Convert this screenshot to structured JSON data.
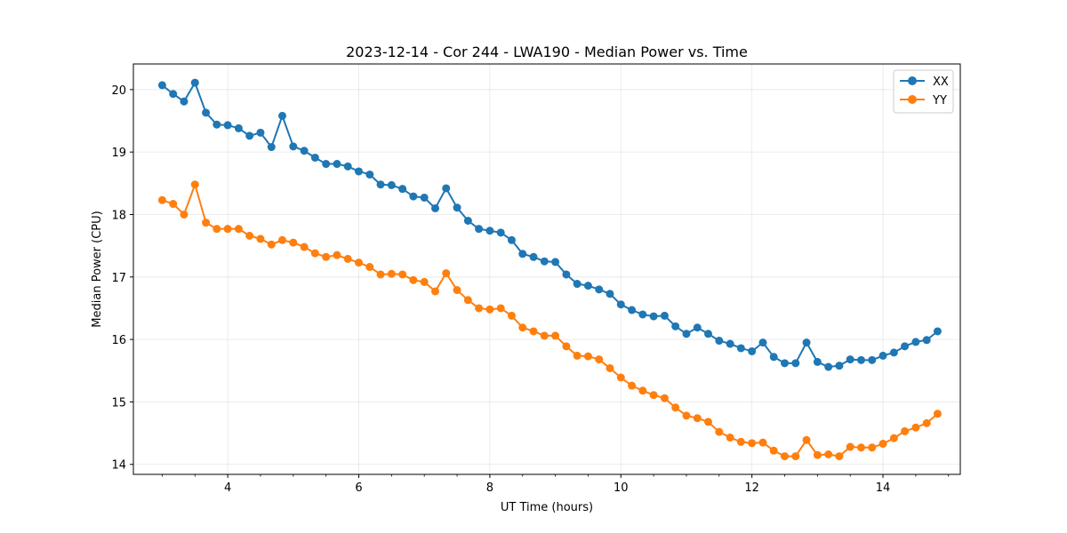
{
  "chart_data": {
    "type": "line",
    "title": "2023-12-14 - Cor 244 - LWA190 - Median Power vs. Time",
    "xlabel": "UT Time (hours)",
    "ylabel": "Median Power (CPU)",
    "xlim": [
      2.56,
      15.18
    ],
    "ylim": [
      13.84,
      20.41
    ],
    "xticks": [
      4,
      6,
      8,
      10,
      12,
      14
    ],
    "xticks_minor": [
      3,
      3.5,
      4.5,
      5,
      5.5,
      6.5,
      7,
      7.5,
      8.5,
      9,
      9.5,
      10.5,
      11,
      11.5,
      12.5,
      13,
      13.5,
      14.5,
      15
    ],
    "yticks": [
      14,
      15,
      16,
      17,
      18,
      19,
      20
    ],
    "grid": true,
    "legend_position": "top-right",
    "x": [
      3.0,
      3.167,
      3.333,
      3.5,
      3.667,
      3.833,
      4.0,
      4.167,
      4.333,
      4.5,
      4.667,
      4.833,
      5.0,
      5.167,
      5.333,
      5.5,
      5.667,
      5.833,
      6.0,
      6.167,
      6.333,
      6.5,
      6.667,
      6.833,
      7.0,
      7.167,
      7.333,
      7.5,
      7.667,
      7.833,
      8.0,
      8.167,
      8.333,
      8.5,
      8.667,
      8.833,
      9.0,
      9.167,
      9.333,
      9.5,
      9.667,
      9.833,
      10.0,
      10.167,
      10.333,
      10.5,
      10.667,
      10.833,
      11.0,
      11.167,
      11.333,
      11.5,
      11.667,
      11.833,
      12.0,
      12.167,
      12.333,
      12.5,
      12.667,
      12.833,
      13.0,
      13.167,
      13.333,
      13.5,
      13.667,
      13.833,
      14.0,
      14.167,
      14.333,
      14.5,
      14.667,
      14.833
    ],
    "series": [
      {
        "name": "XX",
        "color": "#1f77b4",
        "values": [
          20.07,
          19.93,
          19.81,
          20.11,
          19.63,
          19.44,
          19.43,
          19.38,
          19.26,
          19.31,
          19.08,
          19.58,
          19.09,
          19.02,
          18.91,
          18.81,
          18.81,
          18.77,
          18.69,
          18.64,
          18.48,
          18.47,
          18.41,
          18.29,
          18.27,
          18.1,
          18.42,
          18.11,
          17.9,
          17.77,
          17.74,
          17.71,
          17.59,
          17.37,
          17.32,
          17.25,
          17.24,
          17.04,
          16.89,
          16.86,
          16.8,
          16.73,
          16.56,
          16.47,
          16.4,
          16.37,
          16.38,
          16.21,
          16.09,
          16.19,
          16.09,
          15.98,
          15.93,
          15.86,
          15.81,
          15.95,
          15.72,
          15.62,
          15.62,
          15.95,
          15.64,
          15.56,
          15.58,
          15.68,
          15.67,
          15.67,
          15.74,
          15.79,
          15.89,
          15.96,
          15.99,
          16.13
        ]
      },
      {
        "name": "YY",
        "color": "#ff7f0e",
        "values": [
          18.23,
          18.17,
          18.0,
          18.48,
          17.87,
          17.77,
          17.77,
          17.77,
          17.66,
          17.61,
          17.52,
          17.59,
          17.55,
          17.48,
          17.38,
          17.32,
          17.35,
          17.29,
          17.23,
          17.16,
          17.04,
          17.05,
          17.04,
          16.95,
          16.92,
          16.77,
          17.06,
          16.79,
          16.63,
          16.5,
          16.48,
          16.5,
          16.38,
          16.19,
          16.13,
          16.06,
          16.06,
          15.89,
          15.74,
          15.73,
          15.68,
          15.54,
          15.39,
          15.26,
          15.18,
          15.11,
          15.06,
          14.91,
          14.78,
          14.74,
          14.68,
          14.52,
          14.43,
          14.36,
          14.34,
          14.35,
          14.22,
          14.13,
          14.13,
          14.39,
          14.15,
          14.16,
          14.13,
          14.28,
          14.27,
          14.27,
          14.33,
          14.42,
          14.53,
          14.59,
          14.66,
          14.81
        ]
      }
    ]
  }
}
